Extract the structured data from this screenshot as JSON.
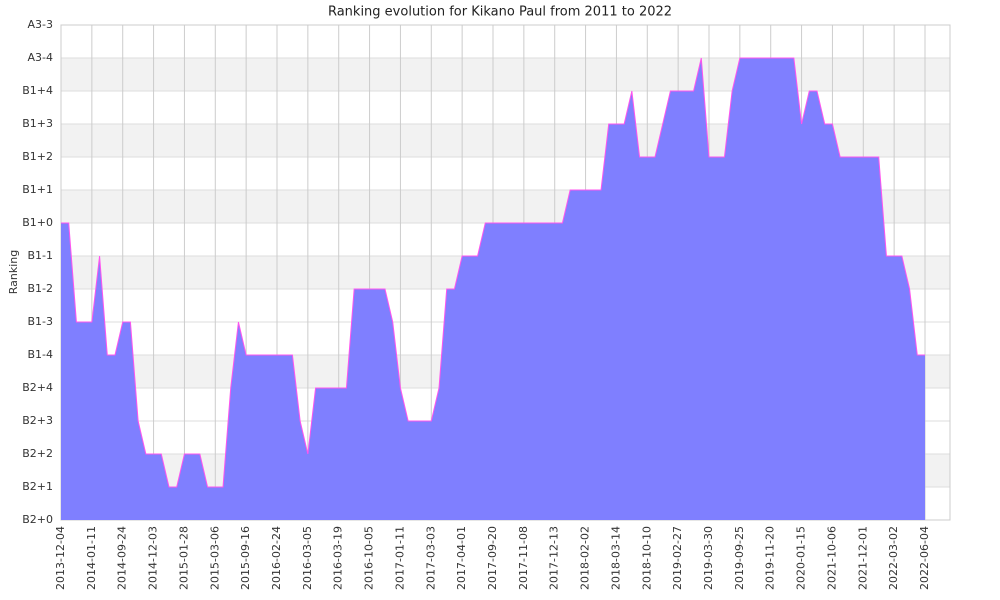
{
  "chart_data": {
    "type": "area",
    "title": "Ranking evolution for Kikano Paul from 2011 to 2022",
    "y_label": "Ranking",
    "categories": [
      "2013-12-04",
      null,
      null,
      null,
      "2014-01-11",
      null,
      null,
      null,
      "2014-09-24",
      null,
      null,
      null,
      "2014-12-03",
      null,
      null,
      null,
      "2015-01-28",
      null,
      null,
      null,
      "2015-03-06",
      null,
      null,
      null,
      "2015-09-16",
      null,
      null,
      null,
      "2016-02-24",
      null,
      null,
      null,
      "2016-03-05",
      null,
      null,
      null,
      "2016-03-19",
      null,
      null,
      null,
      "2016-10-05",
      null,
      null,
      null,
      "2017-01-11",
      null,
      null,
      null,
      "2017-03-03",
      null,
      null,
      null,
      "2017-04-01",
      null,
      null,
      null,
      "2017-09-20",
      null,
      null,
      null,
      "2017-11-08",
      null,
      null,
      null,
      "2017-12-13",
      null,
      null,
      null,
      "2018-02-02",
      null,
      null,
      null,
      "2018-03-14",
      null,
      null,
      null,
      "2018-10-10",
      null,
      null,
      null,
      "2019-02-27",
      null,
      null,
      null,
      "2019-03-30",
      null,
      null,
      null,
      "2019-09-25",
      null,
      null,
      null,
      "2019-11-20",
      null,
      null,
      null,
      "2020-01-15",
      null,
      null,
      null,
      "2021-10-06",
      null,
      null,
      null,
      "2021-12-01",
      null,
      null,
      null,
      "2022-03-02",
      null,
      null,
      null,
      "2022-06-04"
    ],
    "series": [
      {
        "color": "#7f7fff",
        "line_color": "#ff55ee",
        "values": [
          9,
          9,
          6,
          6,
          6,
          8,
          5,
          5,
          6,
          6,
          3,
          2,
          2,
          2,
          1,
          1,
          2,
          2,
          2,
          1,
          1,
          1,
          4,
          6,
          5,
          5,
          5,
          5,
          5,
          5,
          5,
          3,
          2,
          4,
          4,
          4,
          4,
          4,
          7,
          7,
          7,
          7,
          7,
          6,
          4,
          3,
          3,
          3,
          3,
          4,
          7,
          7,
          8,
          8,
          8,
          9,
          9,
          9,
          9,
          9,
          9,
          9,
          9,
          9,
          9,
          9,
          10,
          10,
          10,
          10,
          10,
          12,
          12,
          12,
          13,
          11,
          11,
          11,
          12,
          13,
          13,
          13,
          13,
          14,
          11,
          11,
          11,
          13,
          14,
          14,
          14,
          14,
          14,
          14,
          14,
          14,
          12,
          13,
          13,
          12,
          12,
          11,
          11,
          11,
          11,
          11,
          11,
          8,
          8,
          8,
          7,
          5,
          5
        ]
      }
    ],
    "ylim": [
      0,
      15
    ],
    "yticks": [
      {
        "value": 0,
        "label": "B2+0"
      },
      {
        "value": 1,
        "label": "B2+1"
      },
      {
        "value": 2,
        "label": "B2+2"
      },
      {
        "value": 3,
        "label": "B2+3"
      },
      {
        "value": 4,
        "label": "B2+4"
      },
      {
        "value": 5,
        "label": "B1-4"
      },
      {
        "value": 6,
        "label": "B1-3"
      },
      {
        "value": 7,
        "label": "B1-2"
      },
      {
        "value": 8,
        "label": "B1-1"
      },
      {
        "value": 9,
        "label": "B1+0"
      },
      {
        "value": 10,
        "label": "B1+1"
      },
      {
        "value": 11,
        "label": "B1+2"
      },
      {
        "value": 12,
        "label": "B1+3"
      },
      {
        "value": 13,
        "label": "B1+4"
      },
      {
        "value": 14,
        "label": "A3-4"
      },
      {
        "value": 15,
        "label": "A3-3"
      }
    ],
    "grid": true
  }
}
